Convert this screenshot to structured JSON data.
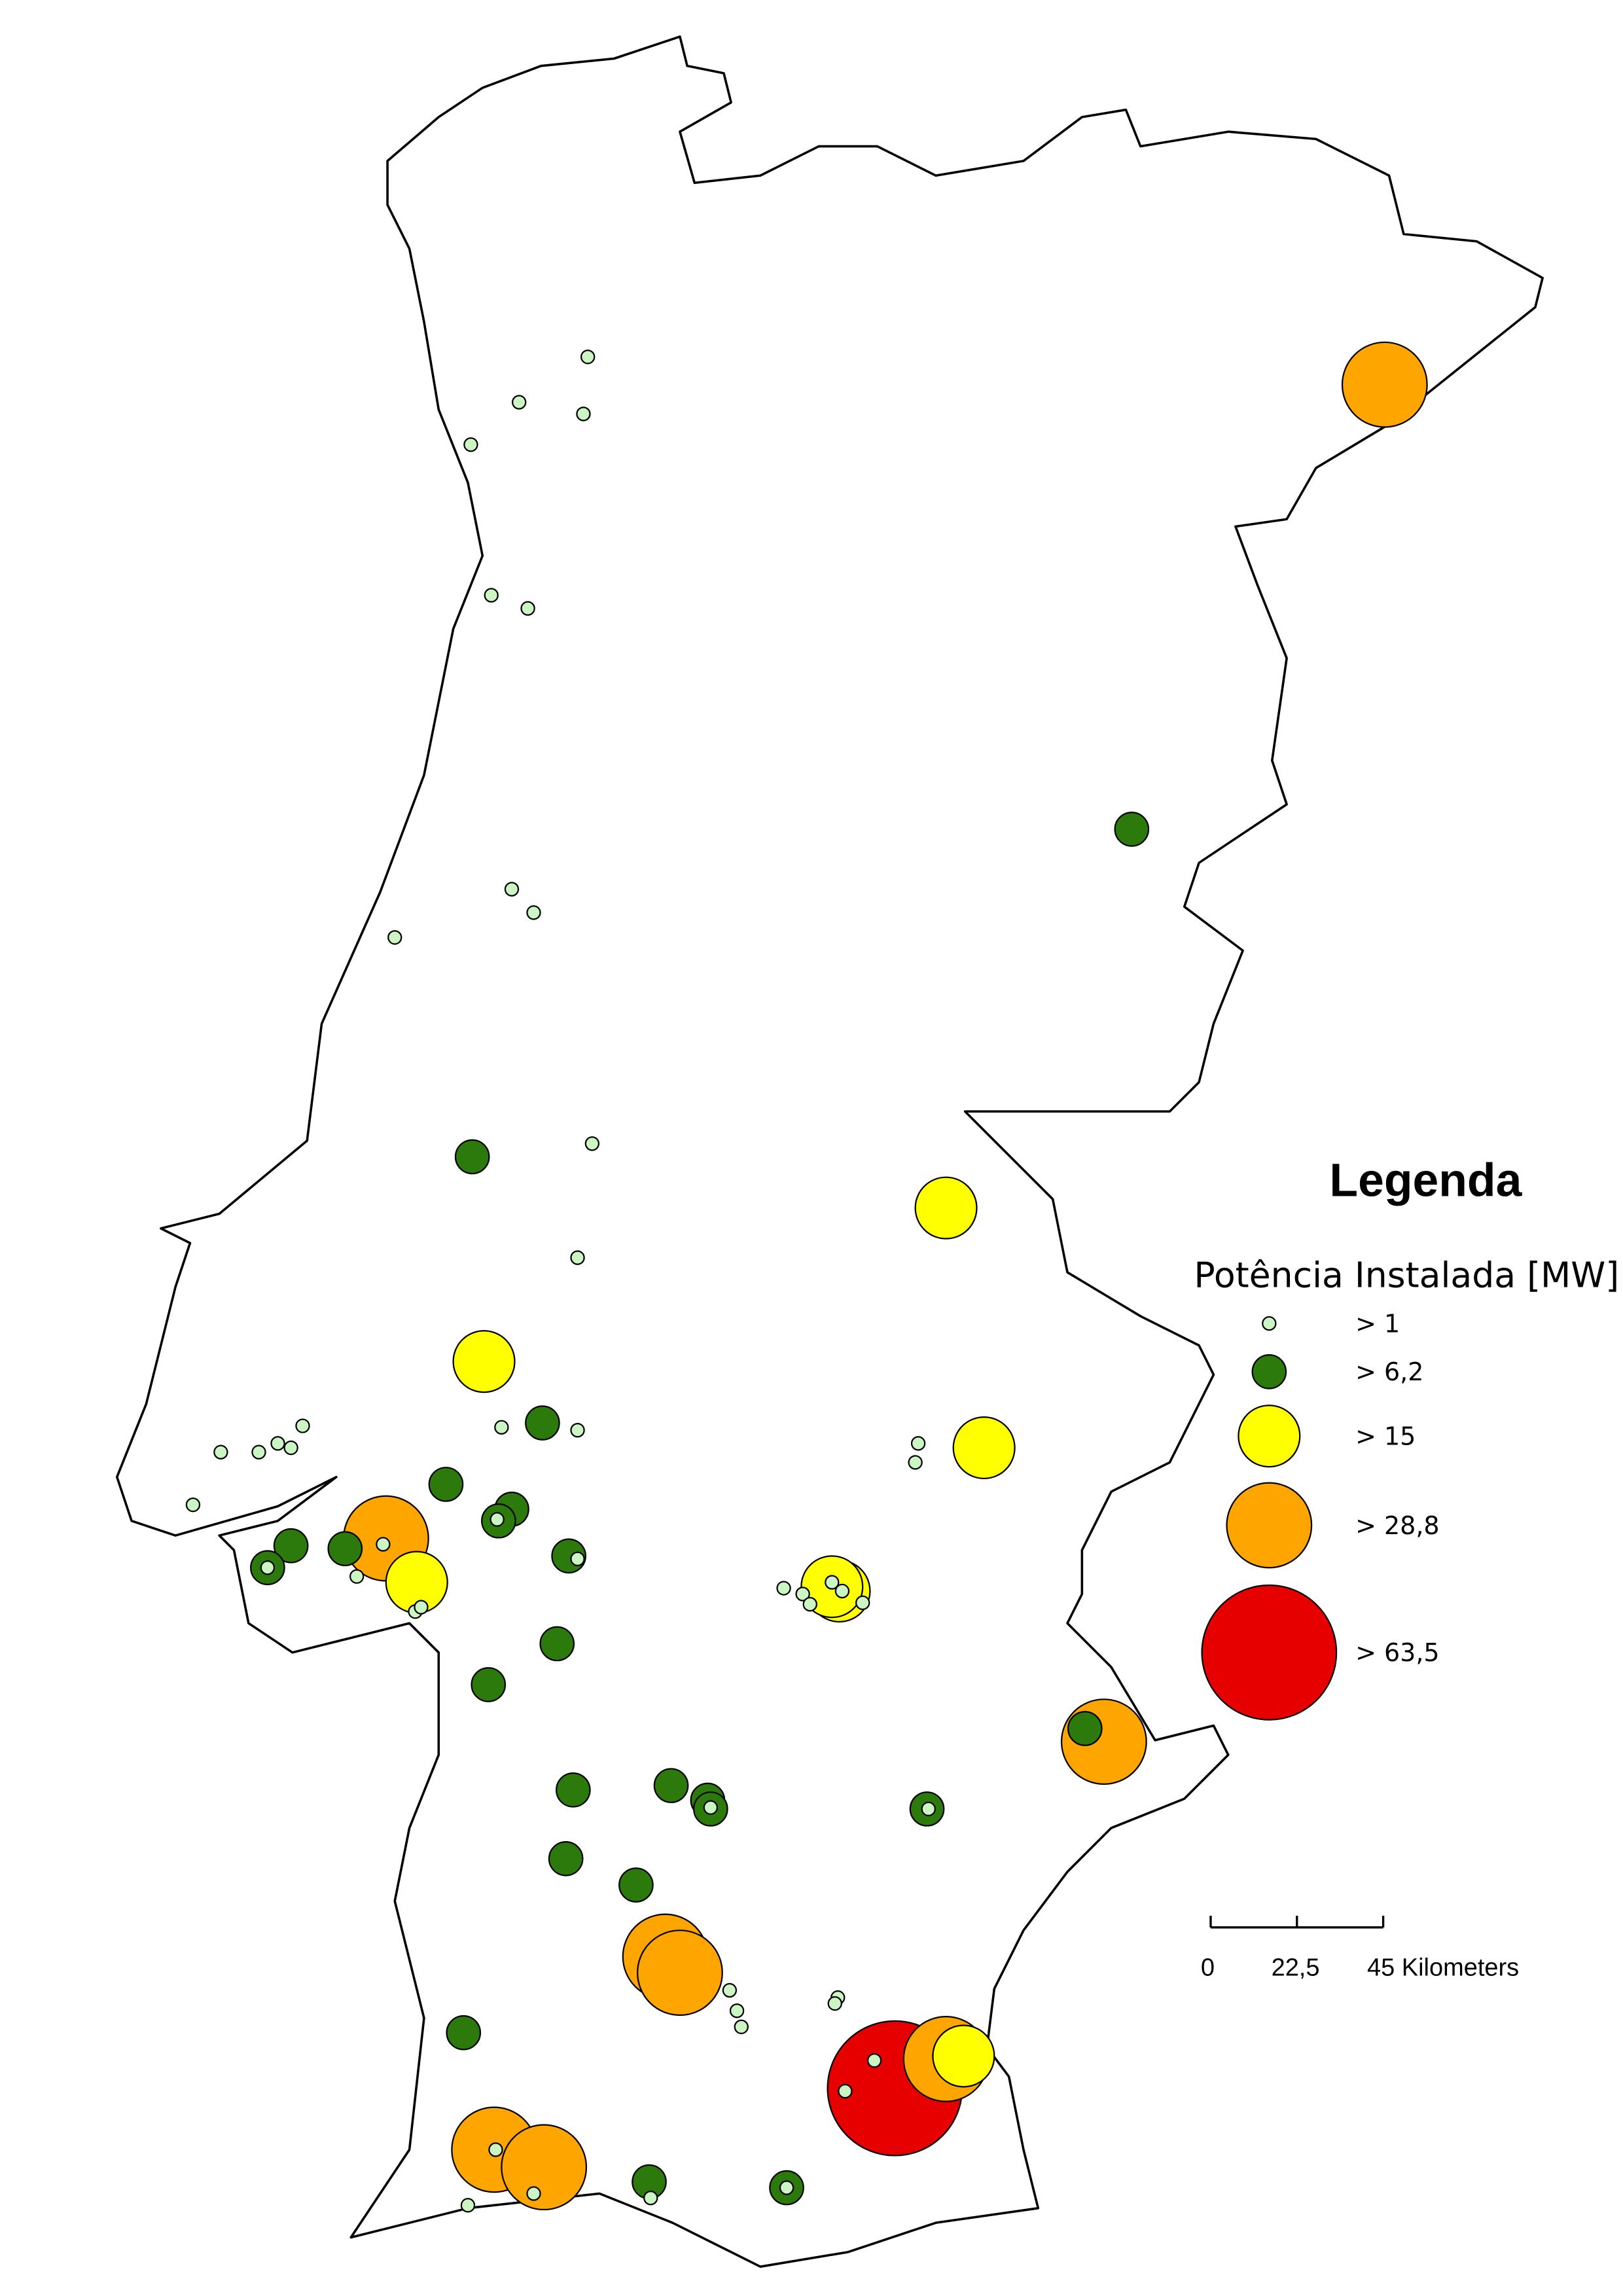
{
  "legend": {
    "title": "Legenda",
    "subtitle": "Potência Instalada [MW]",
    "classes": [
      "> 1",
      "> 6,2",
      "> 15",
      "> 28,8",
      "> 63,5"
    ]
  },
  "scale_bar": {
    "labels": [
      "0",
      "22,5",
      "45 Kilometers"
    ]
  }
}
